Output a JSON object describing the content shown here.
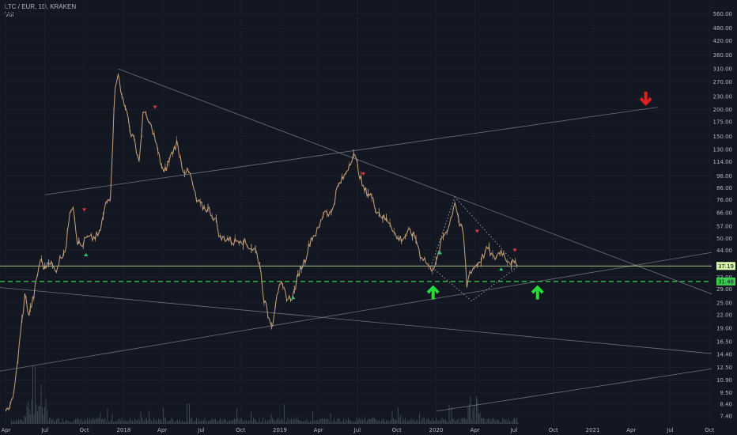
{
  "header": {
    "symbol": "LTC / EUR, 1D, KRAKEN",
    "volume_label": "Vol"
  },
  "chart_data": {
    "type": "line",
    "title": "LTC / EUR, 1D, KRAKEN",
    "y_scale": "log",
    "ylim": [
      6.8,
      650
    ],
    "xlim": [
      "2017-03-18",
      "2021-10-06"
    ],
    "y_ticks": [
      "7.40",
      "8.40",
      "9.50",
      "10.90",
      "12.50",
      "14.40",
      "16.50",
      "19.00",
      "22.00",
      "25.00",
      "29.00",
      "33.00",
      "38.00",
      "44.00",
      "50.00",
      "57.00",
      "66.00",
      "76.00",
      "86.00",
      "98.00",
      "114.00",
      "130.00",
      "150.00",
      "175.00",
      "200.00",
      "230.00",
      "270.00",
      "310.00",
      "360.00",
      "420.00",
      "480.00",
      "560.00"
    ],
    "x_ticks": [
      {
        "label": "Apr",
        "date": "2017-04-01"
      },
      {
        "label": "Jul",
        "date": "2017-07-01"
      },
      {
        "label": "Oct",
        "date": "2017-10-01"
      },
      {
        "label": "2018",
        "date": "2018-01-01"
      },
      {
        "label": "Apr",
        "date": "2018-04-01"
      },
      {
        "label": "Jul",
        "date": "2018-07-01"
      },
      {
        "label": "Oct",
        "date": "2018-10-01"
      },
      {
        "label": "2019",
        "date": "2019-01-01"
      },
      {
        "label": "Apr",
        "date": "2019-04-01"
      },
      {
        "label": "Jul",
        "date": "2019-07-01"
      },
      {
        "label": "Oct",
        "date": "2019-10-01"
      },
      {
        "label": "2020",
        "date": "2020-01-01"
      },
      {
        "label": "Apr",
        "date": "2020-04-01"
      },
      {
        "label": "Jul",
        "date": "2020-07-01"
      },
      {
        "label": "Oct",
        "date": "2020-10-01"
      },
      {
        "label": "2021",
        "date": "2021-01-01"
      },
      {
        "label": "Apr",
        "date": "2021-04-01"
      },
      {
        "label": "Jul",
        "date": "2021-07-01"
      },
      {
        "label": "Oct",
        "date": "2021-10-01"
      }
    ],
    "series": [
      {
        "color": "#c8a27a",
        "points": [
          [
            "2017-04-01",
            7.6
          ],
          [
            "2017-04-20",
            9.5
          ],
          [
            "2017-05-05",
            18.0
          ],
          [
            "2017-05-15",
            27.0
          ],
          [
            "2017-05-25",
            22.0
          ],
          [
            "2017-06-05",
            27.0
          ],
          [
            "2017-06-20",
            40.0
          ],
          [
            "2017-07-01",
            36.0
          ],
          [
            "2017-07-10",
            40.0
          ],
          [
            "2017-07-25",
            35.0
          ],
          [
            "2017-08-05",
            40.0
          ],
          [
            "2017-08-20",
            46.0
          ],
          [
            "2017-08-28",
            68.0
          ],
          [
            "2017-09-05",
            72.0
          ],
          [
            "2017-09-15",
            48.0
          ],
          [
            "2017-09-25",
            46.0
          ],
          [
            "2017-10-05",
            50.0
          ],
          [
            "2017-10-20",
            50.0
          ],
          [
            "2017-11-05",
            52.0
          ],
          [
            "2017-11-20",
            72.0
          ],
          [
            "2017-12-01",
            80.0
          ],
          [
            "2017-12-12",
            260.0
          ],
          [
            "2017-12-19",
            300.0
          ],
          [
            "2017-12-25",
            240.0
          ],
          [
            "2018-01-05",
            210.0
          ],
          [
            "2018-01-15",
            160.0
          ],
          [
            "2018-01-25",
            150.0
          ],
          [
            "2018-02-06",
            110.0
          ],
          [
            "2018-02-15",
            195.0
          ],
          [
            "2018-02-25",
            180.0
          ],
          [
            "2018-03-10",
            160.0
          ],
          [
            "2018-03-25",
            120.0
          ],
          [
            "2018-04-05",
            100.0
          ],
          [
            "2018-04-20",
            120.0
          ],
          [
            "2018-05-05",
            140.0
          ],
          [
            "2018-05-20",
            105.0
          ],
          [
            "2018-06-05",
            100.0
          ],
          [
            "2018-06-20",
            75.0
          ],
          [
            "2018-07-05",
            70.0
          ],
          [
            "2018-07-20",
            68.0
          ],
          [
            "2018-08-05",
            60.0
          ],
          [
            "2018-08-15",
            50.0
          ],
          [
            "2018-09-01",
            50.0
          ],
          [
            "2018-09-15",
            48.0
          ],
          [
            "2018-10-01",
            50.0
          ],
          [
            "2018-10-20",
            46.0
          ],
          [
            "2018-11-05",
            44.0
          ],
          [
            "2018-11-15",
            38.0
          ],
          [
            "2018-11-25",
            26.0
          ],
          [
            "2018-12-07",
            21.0
          ],
          [
            "2018-12-15",
            20.0
          ],
          [
            "2018-12-25",
            28.0
          ],
          [
            "2019-01-05",
            30.0
          ],
          [
            "2019-01-20",
            26.0
          ],
          [
            "2019-02-01",
            27.0
          ],
          [
            "2019-02-15",
            35.0
          ],
          [
            "2019-03-01",
            40.0
          ],
          [
            "2019-03-15",
            50.0
          ],
          [
            "2019-04-01",
            55.0
          ],
          [
            "2019-04-15",
            68.0
          ],
          [
            "2019-05-01",
            65.0
          ],
          [
            "2019-05-15",
            86.0
          ],
          [
            "2019-06-01",
            98.0
          ],
          [
            "2019-06-15",
            115.0
          ],
          [
            "2019-06-22",
            125.0
          ],
          [
            "2019-07-01",
            110.0
          ],
          [
            "2019-07-15",
            85.0
          ],
          [
            "2019-08-01",
            80.0
          ],
          [
            "2019-08-15",
            68.0
          ],
          [
            "2019-09-01",
            62.0
          ],
          [
            "2019-09-15",
            60.0
          ],
          [
            "2019-10-01",
            50.0
          ],
          [
            "2019-10-15",
            50.0
          ],
          [
            "2019-11-01",
            54.0
          ],
          [
            "2019-11-15",
            50.0
          ],
          [
            "2019-11-25",
            42.0
          ],
          [
            "2019-12-05",
            40.0
          ],
          [
            "2019-12-18",
            36.0
          ],
          [
            "2020-01-01",
            38.0
          ],
          [
            "2020-01-15",
            50.0
          ],
          [
            "2020-02-01",
            58.0
          ],
          [
            "2020-02-14",
            75.0
          ],
          [
            "2020-02-25",
            58.0
          ],
          [
            "2020-03-05",
            52.0
          ],
          [
            "2020-03-13",
            30.0
          ],
          [
            "2020-03-20",
            35.0
          ],
          [
            "2020-04-01",
            37.0
          ],
          [
            "2020-04-15",
            40.0
          ],
          [
            "2020-05-01",
            45.0
          ],
          [
            "2020-05-15",
            40.0
          ],
          [
            "2020-06-01",
            44.0
          ],
          [
            "2020-06-15",
            40.0
          ],
          [
            "2020-07-01",
            38.0
          ],
          [
            "2020-07-10",
            37.19
          ]
        ]
      }
    ],
    "annotations": {
      "price_badges": [
        {
          "value": 37.19,
          "label": "37.19",
          "color": "#d7f5a8"
        },
        {
          "value": 31.48,
          "label": "31.48",
          "color": "#3ccf4e"
        }
      ],
      "horizontal_lines": [
        {
          "value": 37.19,
          "style": "solid",
          "color": "#d7f5a8"
        },
        {
          "value": 31.48,
          "style": "dashed",
          "color": "#3ccf4e"
        }
      ],
      "trend_lines": [
        {
          "color": "#9598a1",
          "points": [
            [
              "2017-12-19",
              310.0
            ],
            [
              "2021-10-06",
              27.5
            ]
          ]
        },
        {
          "color": "#9598a1",
          "points": [
            [
              "2017-03-18",
              12.0
            ],
            [
              "2021-10-06",
              43.0
            ]
          ]
        },
        {
          "color": "#9598a1",
          "points": [
            [
              "2017-03-18",
              29.5
            ],
            [
              "2021-10-06",
              14.5
            ]
          ]
        },
        {
          "color": "#9598a1",
          "points": [
            [
              "2017-07-01",
              80.0
            ],
            [
              "2021-06-01",
              205.0
            ]
          ]
        },
        {
          "color": "#9598a1",
          "points": [
            [
              "2020-01-01",
              7.8
            ],
            [
              "2021-10-06",
              12.3
            ]
          ]
        }
      ],
      "dotted_polygon": {
        "color": "#9598a1",
        "points": [
          [
            "2019-12-20",
            37.0
          ],
          [
            "2020-02-14",
            78.0
          ],
          [
            "2020-07-10",
            37.0
          ],
          [
            "2020-03-24",
            25.5
          ],
          [
            "2019-12-20",
            37.0
          ]
        ]
      },
      "small_markers": [
        {
          "type": "sell",
          "date": "2017-10-01",
          "value": 68.0,
          "color": "#e03b3b"
        },
        {
          "type": "buy",
          "date": "2017-10-05",
          "value": 42.0,
          "color": "#2ecc71"
        },
        {
          "type": "sell",
          "date": "2018-03-15",
          "value": 205.0,
          "color": "#e03b3b"
        },
        {
          "type": "buy",
          "date": "2019-02-01",
          "value": 26.5,
          "color": "#2ecc71"
        },
        {
          "type": "sell",
          "date": "2019-07-15",
          "value": 100.0,
          "color": "#e03b3b"
        },
        {
          "type": "buy",
          "date": "2020-01-10",
          "value": 43.0,
          "color": "#2ecc71"
        },
        {
          "type": "sell",
          "date": "2020-04-06",
          "value": 54.0,
          "color": "#e03b3b"
        },
        {
          "type": "buy",
          "date": "2020-06-01",
          "value": 36.0,
          "color": "#2ecc71"
        },
        {
          "type": "sell",
          "date": "2020-07-03",
          "value": 44.0,
          "color": "#e03b3b"
        }
      ],
      "big_arrows": [
        {
          "direction": "up",
          "date": "2019-12-25",
          "value": 28.0,
          "color": "#28d938"
        },
        {
          "direction": "up",
          "date": "2020-08-25",
          "value": 28.0,
          "color": "#28d938"
        },
        {
          "direction": "down",
          "date": "2021-05-05",
          "value": 225.0,
          "color": "#e01f1f"
        }
      ]
    },
    "colors": {
      "background": "#131722",
      "price": "#c8a27a",
      "volume": "#5b6b78",
      "grid": "#1a1e2b",
      "axis_text": "#b2b5be"
    },
    "legend": "none",
    "grid": true
  }
}
